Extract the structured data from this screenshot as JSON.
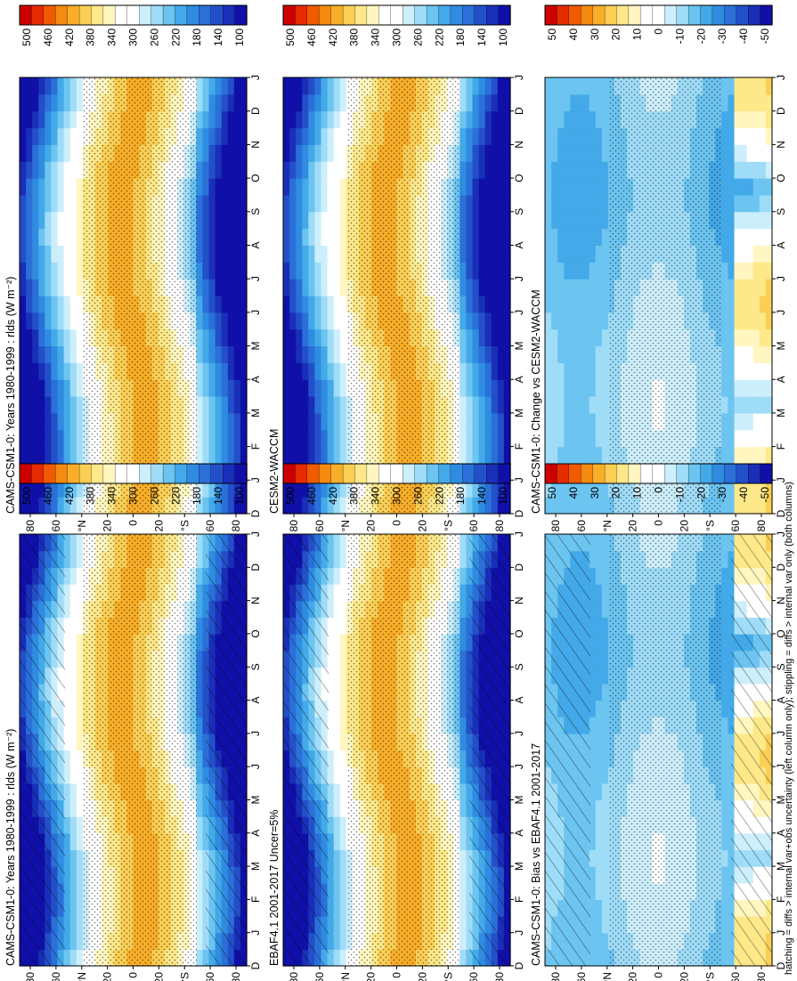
{
  "figure": {
    "footnote": "hatching = diffs > internal var+obs uncertainty (left column only); stippling = diffs > internal var only (both columns)"
  },
  "chart_data": [
    {
      "type": "heatmap",
      "id": "p1",
      "title": "CAMS-CSM1-0: Years 1980-1999 : rlds (W m⁻²)",
      "x_months": [
        "D",
        "J",
        "F",
        "M",
        "A",
        "M",
        "J",
        "J",
        "A",
        "S",
        "O",
        "N",
        "D",
        "J"
      ],
      "y_ticks": [
        "80",
        "60",
        "°N",
        "20",
        "0",
        "20",
        "°S",
        "60",
        "80"
      ],
      "ylim": [
        -90,
        90
      ],
      "colorbar": {
        "labels": [
          "500",
          "460",
          "420",
          "380",
          "340",
          "300",
          "260",
          "220",
          "180",
          "140",
          "100"
        ],
        "colors": [
          "#cc0000",
          "#e62b00",
          "#f05a00",
          "#f58a10",
          "#f8ae28",
          "#fbcf55",
          "#fde88a",
          "#fff6c0",
          "#ffffff",
          "#ffffff",
          "#cdeefb",
          "#9fdcf8",
          "#6cc4f0",
          "#43a9e8",
          "#2f8ce0",
          "#2a70d8",
          "#2350c8",
          "#1a2fb8",
          "#1010a8"
        ]
      },
      "field": "rlds",
      "hatching": true,
      "stippling": true
    },
    {
      "type": "heatmap",
      "id": "p2",
      "title": "CAMS-CSM1-0: Years 1980-1999 : rlds (W m⁻²)",
      "x_months": [
        "D",
        "J",
        "F",
        "M",
        "A",
        "M",
        "J",
        "J",
        "A",
        "S",
        "O",
        "N",
        "D",
        "J"
      ],
      "y_ticks": [
        "80",
        "60",
        "°N",
        "20",
        "0",
        "20",
        "°S",
        "60",
        "80"
      ],
      "ylim": [
        -90,
        90
      ],
      "colorbar": {
        "labels": [
          "500",
          "460",
          "420",
          "380",
          "340",
          "300",
          "260",
          "220",
          "180",
          "140",
          "100"
        ]
      },
      "field": "rlds",
      "hatching": false,
      "stippling": true
    },
    {
      "type": "heatmap",
      "id": "p3",
      "title": "EBAF4.1 2001-2017 Uncer=5%",
      "x_months": [
        "D",
        "J",
        "F",
        "M",
        "A",
        "M",
        "J",
        "J",
        "A",
        "S",
        "O",
        "N",
        "D",
        "J"
      ],
      "y_ticks": [
        "80",
        "60",
        "°N",
        "20",
        "0",
        "20",
        "°S",
        "60",
        "80"
      ],
      "ylim": [
        -90,
        90
      ],
      "colorbar": {
        "labels": [
          "500",
          "460",
          "420",
          "380",
          "340",
          "300",
          "260",
          "220",
          "180",
          "140",
          "100"
        ]
      },
      "field": "rlds",
      "hatching": true,
      "stippling": true
    },
    {
      "type": "heatmap",
      "id": "p4",
      "title": "CESM2-WACCM",
      "x_months": [
        "D",
        "J",
        "F",
        "M",
        "A",
        "M",
        "J",
        "J",
        "A",
        "S",
        "O",
        "N",
        "D",
        "J"
      ],
      "y_ticks": [
        "80",
        "60",
        "°N",
        "20",
        "0",
        "20",
        "°S",
        "60",
        "80"
      ],
      "ylim": [
        -90,
        90
      ],
      "colorbar": {
        "labels": [
          "500",
          "460",
          "420",
          "380",
          "340",
          "300",
          "260",
          "220",
          "180",
          "140",
          "100"
        ]
      },
      "field": "rlds",
      "hatching": false,
      "stippling": true
    },
    {
      "type": "heatmap",
      "id": "p5",
      "title": "CAMS-CSM1-0: Bias vs EBAF4.1 2001-2017",
      "x_months": [
        "D",
        "J",
        "F",
        "M",
        "A",
        "M",
        "J",
        "J",
        "A",
        "S",
        "O",
        "N",
        "D",
        "J"
      ],
      "y_ticks": [
        "80",
        "60",
        "°N",
        "20",
        "0",
        "20",
        "°S",
        "60",
        "80"
      ],
      "ylim": [
        -90,
        90
      ],
      "colorbar": {
        "labels": [
          "50",
          "40",
          "30",
          "20",
          "10",
          "0",
          "-10",
          "-20",
          "-30",
          "-40",
          "-50"
        ]
      },
      "field": "rlds difference",
      "hatching": true,
      "stippling": true
    },
    {
      "type": "heatmap",
      "id": "p6",
      "title": "CAMS-CSM1-0: Change vs CESM2-WACCM",
      "x_months": [
        "D",
        "J",
        "F",
        "M",
        "A",
        "M",
        "J",
        "J",
        "A",
        "S",
        "O",
        "N",
        "D",
        "J"
      ],
      "y_ticks": [
        "80",
        "60",
        "°N",
        "20",
        "0",
        "20",
        "°S",
        "60",
        "80"
      ],
      "ylim": [
        -90,
        90
      ],
      "colorbar": {
        "labels": [
          "50",
          "40",
          "30",
          "20",
          "10",
          "0",
          "-10",
          "-20",
          "-30",
          "-40",
          "-50"
        ]
      },
      "field": "rlds difference",
      "hatching": false,
      "stippling": true
    }
  ]
}
